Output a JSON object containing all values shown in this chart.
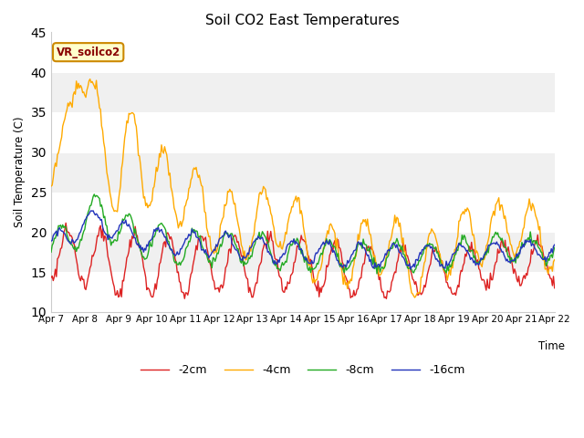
{
  "title": "Soil CO2 East Temperatures",
  "ylabel": "Soil Temperature (C)",
  "xlabel": "Time",
  "ylim": [
    10,
    45
  ],
  "yticks": [
    10,
    15,
    20,
    25,
    30,
    35,
    40,
    45
  ],
  "label_box_text": "VR_soilco2",
  "label_box_bg": "#ffffcc",
  "label_box_edge": "#cc8800",
  "label_box_text_color": "#880000",
  "legend_entries": [
    "-2cm",
    "-4cm",
    "-8cm",
    "-16cm"
  ],
  "line_colors": [
    "#dd2222",
    "#ffaa00",
    "#22aa22",
    "#2233bb"
  ],
  "bg_bands": [
    [
      10,
      15,
      "#ffffff"
    ],
    [
      15,
      20,
      "#f0f0f0"
    ],
    [
      20,
      25,
      "#ffffff"
    ],
    [
      25,
      30,
      "#f0f0f0"
    ],
    [
      30,
      35,
      "#ffffff"
    ],
    [
      35,
      40,
      "#f0f0f0"
    ],
    [
      40,
      45,
      "#ffffff"
    ]
  ],
  "xtick_labels": [
    "Apr 7",
    "Apr 8",
    "Apr 9",
    "Apr 10",
    "Apr 11",
    "Apr 12",
    "Apr 13",
    "Apr 14",
    "Apr 15",
    "Apr 16",
    "Apr 17",
    "Apr 18",
    "Apr 19",
    "Apr 20",
    "Apr 21",
    "Apr 22"
  ],
  "n_points": 480
}
